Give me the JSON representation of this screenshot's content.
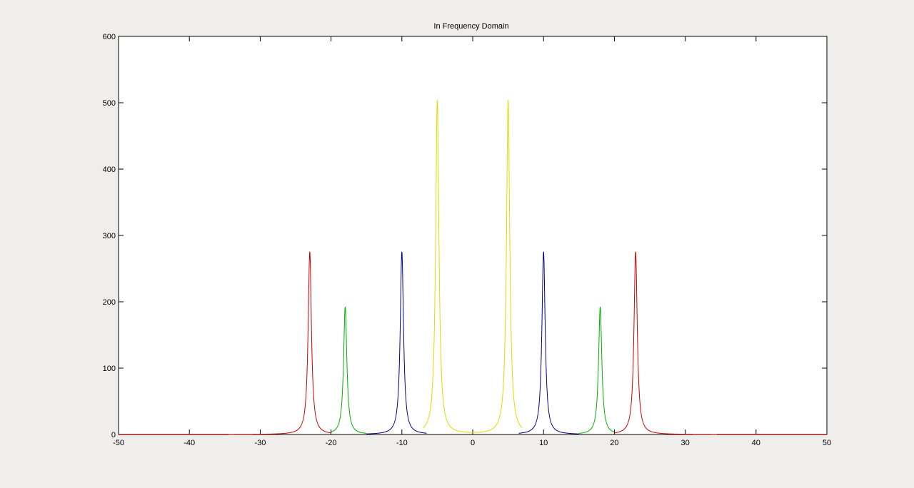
{
  "chart_data": {
    "type": "line",
    "title": "In Frequency Domain",
    "xlabel": "",
    "ylabel": "",
    "xlim": [
      -50,
      50
    ],
    "ylim": [
      0,
      600
    ],
    "xticks": [
      -50,
      -40,
      -30,
      -20,
      -10,
      0,
      10,
      20,
      30,
      40,
      50
    ],
    "yticks": [
      0,
      100,
      200,
      300,
      400,
      500,
      600
    ],
    "grid": false,
    "legend": "none",
    "series": [
      {
        "color": "#cc0000",
        "peaks": [
          {
            "x": -23,
            "y": 275
          },
          {
            "x": 23,
            "y": 275
          }
        ],
        "ranges": [
          [
            -34.5,
            -20
          ],
          [
            20,
            34.5
          ]
        ],
        "baseline_ranges": [
          [
            -50,
            -34.5
          ],
          [
            34.5,
            50
          ]
        ]
      },
      {
        "color": "#00b000",
        "peaks": [
          {
            "x": -18,
            "y": 192
          },
          {
            "x": 18,
            "y": 192
          }
        ],
        "ranges": [
          [
            -20,
            -15
          ],
          [
            15,
            20
          ]
        ]
      },
      {
        "color": "#00008b",
        "peaks": [
          {
            "x": -10,
            "y": 275
          },
          {
            "x": 10,
            "y": 275
          }
        ],
        "ranges": [
          [
            -15,
            -6.5
          ],
          [
            6.5,
            15
          ]
        ]
      },
      {
        "color": "#e6d800",
        "peaks": [
          {
            "x": -5,
            "y": 503
          },
          {
            "x": 5,
            "y": 503
          }
        ],
        "ranges": [
          [
            -7,
            7
          ]
        ]
      }
    ]
  }
}
